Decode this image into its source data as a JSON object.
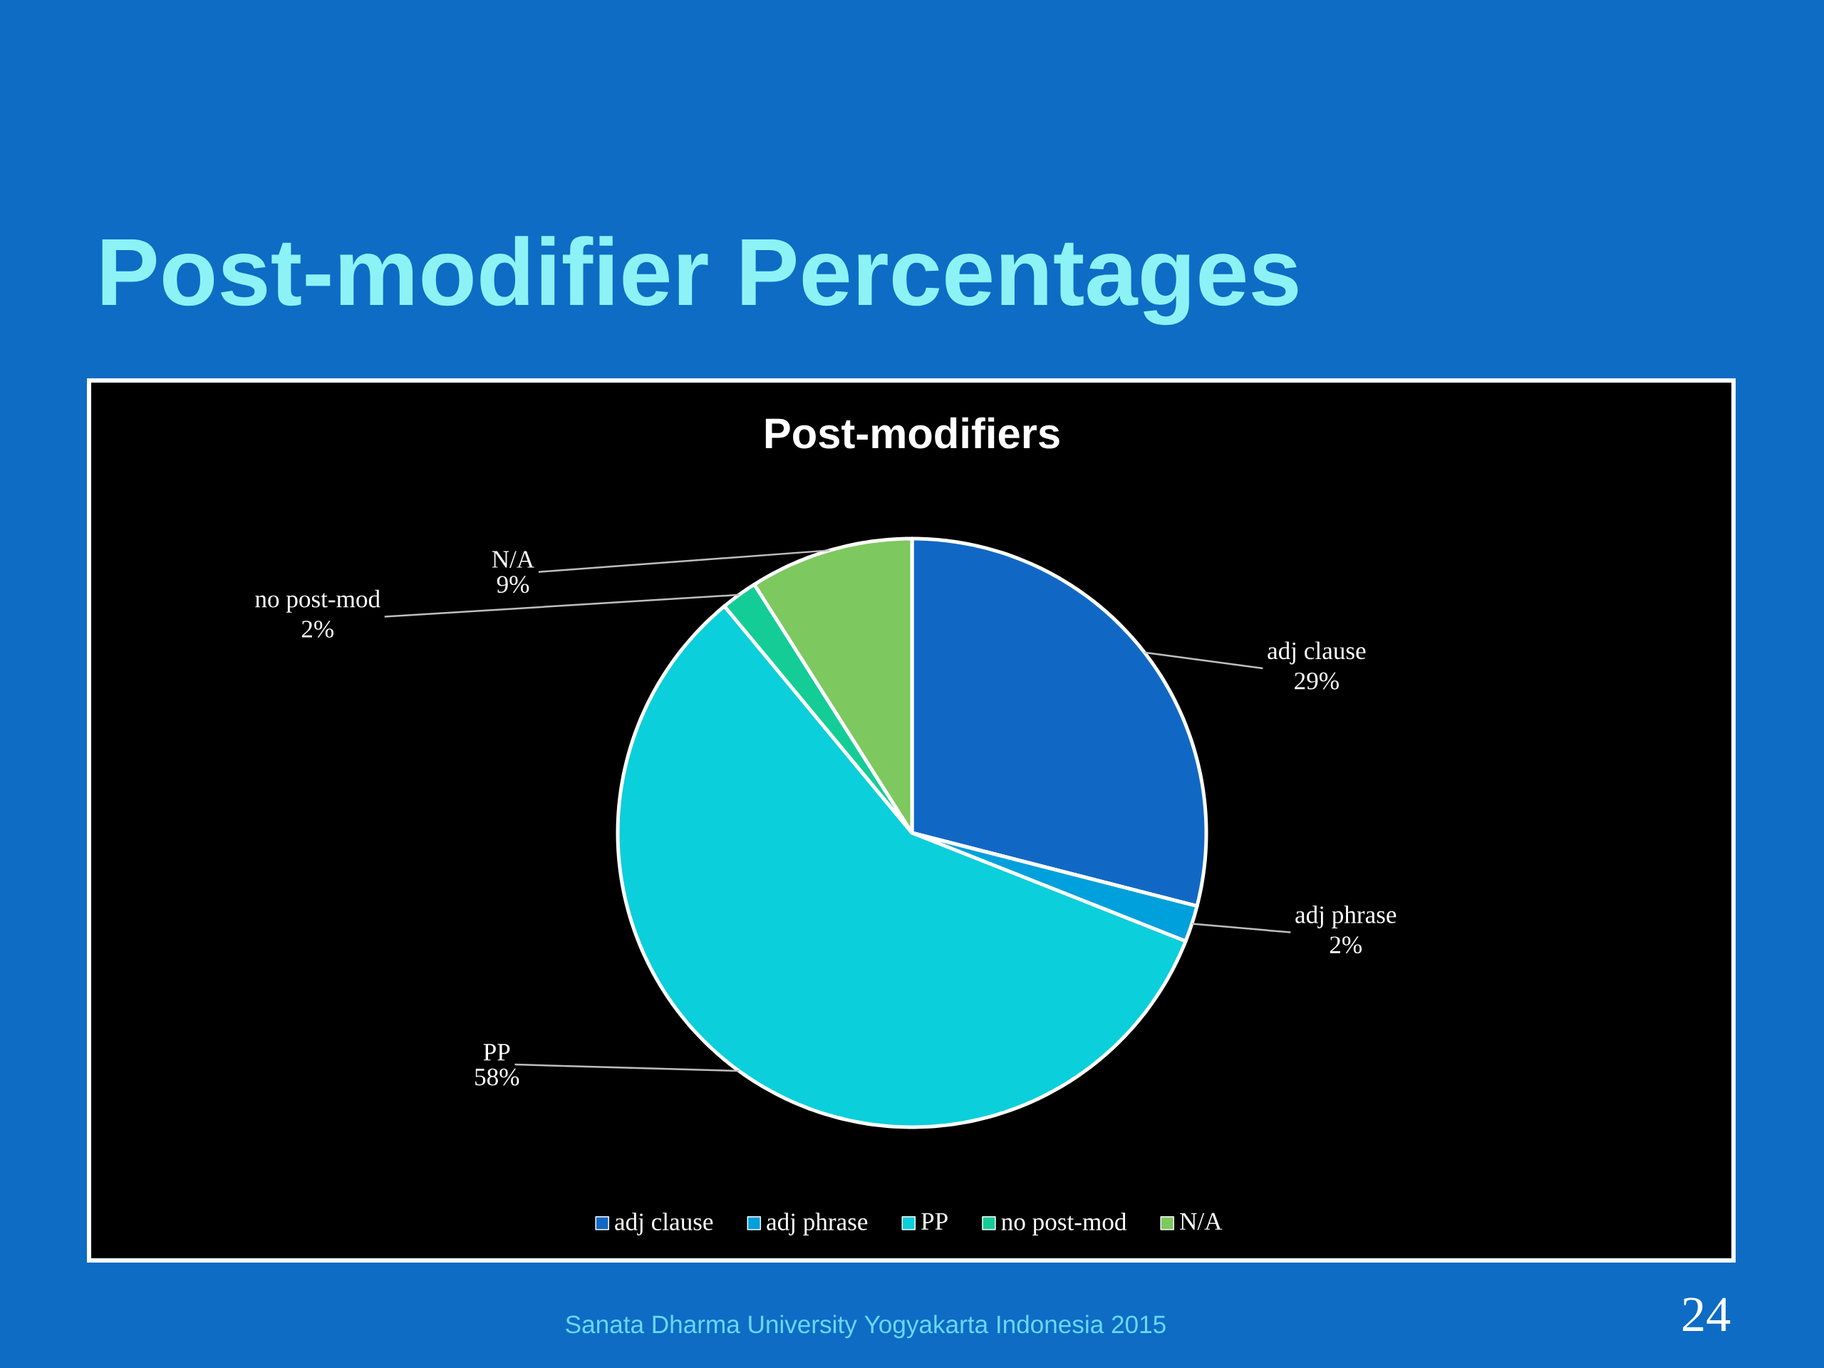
{
  "chart_data": {
    "type": "pie",
    "title": "Post-modifier Percentages",
    "subtitle": "Post-modifiers",
    "categories": [
      "adj clause",
      "adj phrase",
      "PP",
      "no post-mod",
      "N/A"
    ],
    "values": [
      29,
      2,
      58,
      2,
      9
    ],
    "value_labels": [
      "29%",
      "2%",
      "58%",
      "2%",
      "9%"
    ],
    "colors": [
      "#1168c4",
      "#00a0dc",
      "#0bcfda",
      "#14cd96",
      "#7dc85f"
    ],
    "legend": "bottom",
    "annotations": [
      "Sanata Dharma University Yogyakarta Indonesia 2015",
      "24"
    ]
  }
}
